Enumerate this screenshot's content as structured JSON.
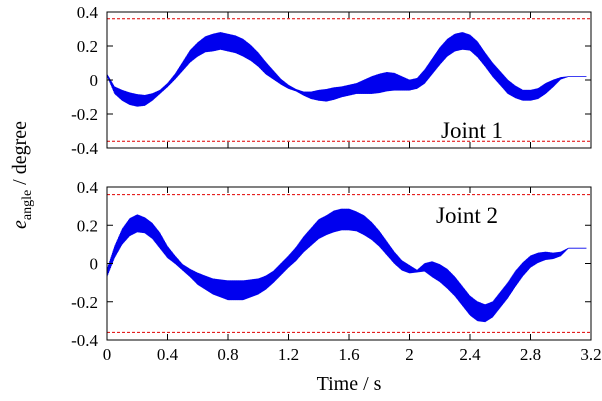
{
  "figure": {
    "xlabel": "Time / s",
    "ylabel_main": "e",
    "ylabel_sub": "angle",
    "ylabel_rest": " / degree"
  },
  "chart_data": [
    {
      "type": "line",
      "panel_label": "Joint 1",
      "xlim": [
        0,
        3.2
      ],
      "ylim": [
        -0.4,
        0.4
      ],
      "x_ticks": [
        "0",
        "0.4",
        "0.8",
        "1.2",
        "1.6",
        "2",
        "2.4",
        "2.8",
        "3.2"
      ],
      "y_ticks": [
        "0.4",
        "0.2",
        "0",
        "-0.2",
        "-0.4"
      ],
      "grid": false,
      "x_tick_labels_shown": false,
      "limit_lines": {
        "values": [
          0.36,
          -0.36
        ],
        "color": "#e00000",
        "style": "dashed"
      },
      "series": [
        {
          "color": "#0000ee",
          "x": [
            0,
            0.05,
            0.1,
            0.15,
            0.2,
            0.25,
            0.3,
            0.35,
            0.4,
            0.45,
            0.5,
            0.55,
            0.6,
            0.65,
            0.7,
            0.75,
            0.8,
            0.85,
            0.9,
            0.95,
            1.0,
            1.05,
            1.1,
            1.15,
            1.2,
            1.25,
            1.3,
            1.35,
            1.4,
            1.45,
            1.5,
            1.55,
            1.6,
            1.65,
            1.7,
            1.75,
            1.8,
            1.85,
            1.9,
            1.95,
            2.0,
            2.05,
            2.1,
            2.15,
            2.2,
            2.25,
            2.3,
            2.35,
            2.4,
            2.45,
            2.5,
            2.55,
            2.6,
            2.65,
            2.7,
            2.75,
            2.8,
            2.85,
            2.9,
            2.95,
            3.0,
            3.05,
            3.1
          ],
          "y": [
            0.03,
            -0.06,
            -0.09,
            -0.11,
            -0.12,
            -0.12,
            -0.1,
            -0.07,
            -0.03,
            0.02,
            0.08,
            0.14,
            0.18,
            0.21,
            0.22,
            0.23,
            0.22,
            0.21,
            0.19,
            0.16,
            0.12,
            0.07,
            0.03,
            -0.01,
            -0.04,
            -0.06,
            -0.08,
            -0.09,
            -0.09,
            -0.09,
            -0.08,
            -0.07,
            -0.06,
            -0.05,
            -0.04,
            -0.03,
            -0.02,
            -0.01,
            -0.01,
            -0.02,
            -0.03,
            -0.02,
            0.02,
            0.08,
            0.14,
            0.19,
            0.22,
            0.23,
            0.22,
            0.18,
            0.12,
            0.06,
            0.01,
            -0.04,
            -0.07,
            -0.09,
            -0.09,
            -0.08,
            -0.05,
            -0.02,
            0.01,
            0.02,
            0.02
          ],
          "ripple": [
            0.005,
            0.02,
            0.03,
            0.035,
            0.035,
            0.03,
            0.02,
            0.01,
            0.01,
            0.015,
            0.025,
            0.035,
            0.04,
            0.045,
            0.05,
            0.05,
            0.05,
            0.05,
            0.05,
            0.045,
            0.04,
            0.035,
            0.025,
            0.015,
            0.01,
            0.005,
            0.01,
            0.02,
            0.03,
            0.035,
            0.035,
            0.03,
            0.03,
            0.03,
            0.04,
            0.05,
            0.055,
            0.055,
            0.05,
            0.04,
            0.03,
            0.03,
            0.04,
            0.045,
            0.05,
            0.05,
            0.05,
            0.05,
            0.045,
            0.045,
            0.04,
            0.04,
            0.04,
            0.04,
            0.035,
            0.03,
            0.03,
            0.03,
            0.03,
            0.02,
            0.005,
            0,
            0
          ]
        }
      ]
    },
    {
      "type": "line",
      "panel_label": "Joint 2",
      "xlim": [
        0,
        3.2
      ],
      "ylim": [
        -0.4,
        0.4
      ],
      "x_ticks": [
        "0",
        "0.4",
        "0.8",
        "1.2",
        "1.6",
        "2",
        "2.4",
        "2.8",
        "3.2"
      ],
      "y_ticks": [
        "0.4",
        "0.2",
        "0",
        "-0.2",
        "-0.4"
      ],
      "grid": false,
      "x_tick_labels_shown": true,
      "limit_lines": {
        "values": [
          0.36,
          -0.36
        ],
        "color": "#e00000",
        "style": "dashed"
      },
      "series": [
        {
          "color": "#0000ee",
          "x": [
            0,
            0.05,
            0.1,
            0.15,
            0.2,
            0.25,
            0.3,
            0.35,
            0.4,
            0.45,
            0.5,
            0.55,
            0.6,
            0.65,
            0.7,
            0.75,
            0.8,
            0.85,
            0.9,
            0.95,
            1.0,
            1.05,
            1.1,
            1.15,
            1.2,
            1.25,
            1.3,
            1.35,
            1.4,
            1.45,
            1.5,
            1.55,
            1.6,
            1.65,
            1.7,
            1.75,
            1.8,
            1.85,
            1.9,
            1.95,
            2.0,
            2.05,
            2.1,
            2.15,
            2.2,
            2.25,
            2.3,
            2.35,
            2.4,
            2.45,
            2.5,
            2.55,
            2.6,
            2.65,
            2.7,
            2.75,
            2.8,
            2.85,
            2.9,
            2.95,
            3.0,
            3.05,
            3.1
          ],
          "y": [
            -0.05,
            0.06,
            0.14,
            0.19,
            0.21,
            0.2,
            0.17,
            0.12,
            0.06,
            0.02,
            -0.02,
            -0.05,
            -0.08,
            -0.1,
            -0.12,
            -0.13,
            -0.14,
            -0.14,
            -0.14,
            -0.13,
            -0.12,
            -0.1,
            -0.07,
            -0.03,
            0.01,
            0.05,
            0.1,
            0.14,
            0.18,
            0.2,
            0.22,
            0.23,
            0.23,
            0.22,
            0.2,
            0.17,
            0.13,
            0.08,
            0.03,
            -0.01,
            -0.03,
            -0.04,
            -0.02,
            -0.03,
            -0.05,
            -0.08,
            -0.12,
            -0.17,
            -0.22,
            -0.25,
            -0.26,
            -0.24,
            -0.19,
            -0.14,
            -0.08,
            -0.03,
            0.01,
            0.03,
            0.04,
            0.04,
            0.05,
            0.08,
            0.08
          ],
          "ripple": [
            0.02,
            0.03,
            0.04,
            0.045,
            0.045,
            0.04,
            0.04,
            0.04,
            0.03,
            0.02,
            0.015,
            0.02,
            0.03,
            0.035,
            0.04,
            0.045,
            0.05,
            0.05,
            0.05,
            0.045,
            0.04,
            0.035,
            0.03,
            0.03,
            0.03,
            0.035,
            0.04,
            0.045,
            0.05,
            0.05,
            0.055,
            0.055,
            0.055,
            0.05,
            0.05,
            0.045,
            0.04,
            0.035,
            0.03,
            0.025,
            0.02,
            0.005,
            0.02,
            0.04,
            0.045,
            0.05,
            0.05,
            0.05,
            0.05,
            0.05,
            0.045,
            0.04,
            0.04,
            0.04,
            0.04,
            0.035,
            0.03,
            0.025,
            0.02,
            0.015,
            0.01,
            0,
            0
          ]
        }
      ]
    }
  ]
}
